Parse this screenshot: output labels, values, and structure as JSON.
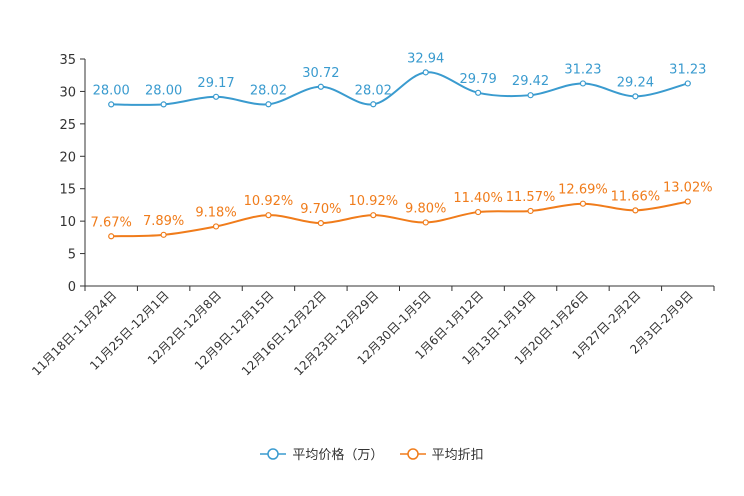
{
  "chart_data": {
    "type": "line",
    "categories": [
      "11月18日-11月24日",
      "11月25日-12月1日",
      "12月2日-12月8日",
      "12月9日-12月15日",
      "12月16日-12月22日",
      "12月23日-12月29日",
      "12月30日-1月5日",
      "1月6日-1月12日",
      "1月13日-1月19日",
      "1月20日-1月26日",
      "1月27日-2月2日",
      "2月3日-2月9日"
    ],
    "ylim": [
      0,
      35
    ],
    "yticks": [
      0,
      5,
      10,
      15,
      20,
      25,
      30,
      35
    ],
    "series": [
      {
        "name": "平均价格（万）",
        "color": "#3a9bcf",
        "values": [
          28.0,
          28.0,
          29.17,
          28.02,
          30.72,
          28.02,
          32.94,
          29.79,
          29.42,
          31.23,
          29.24,
          31.23
        ],
        "labels": [
          "28.00",
          "28.00",
          "29.17",
          "28.02",
          "30.72",
          "28.02",
          "32.94",
          "29.79",
          "29.42",
          "31.23",
          "29.24",
          "31.23"
        ]
      },
      {
        "name": "平均折扣",
        "color": "#f07c1b",
        "values": [
          7.67,
          7.89,
          9.18,
          10.92,
          9.7,
          10.92,
          9.8,
          11.4,
          11.57,
          12.69,
          11.66,
          13.02
        ],
        "labels": [
          "7.67%",
          "7.89%",
          "9.18%",
          "10.92%",
          "9.70%",
          "10.92%",
          "9.80%",
          "11.40%",
          "11.57%",
          "12.69%",
          "11.66%",
          "13.02%"
        ]
      }
    ]
  }
}
